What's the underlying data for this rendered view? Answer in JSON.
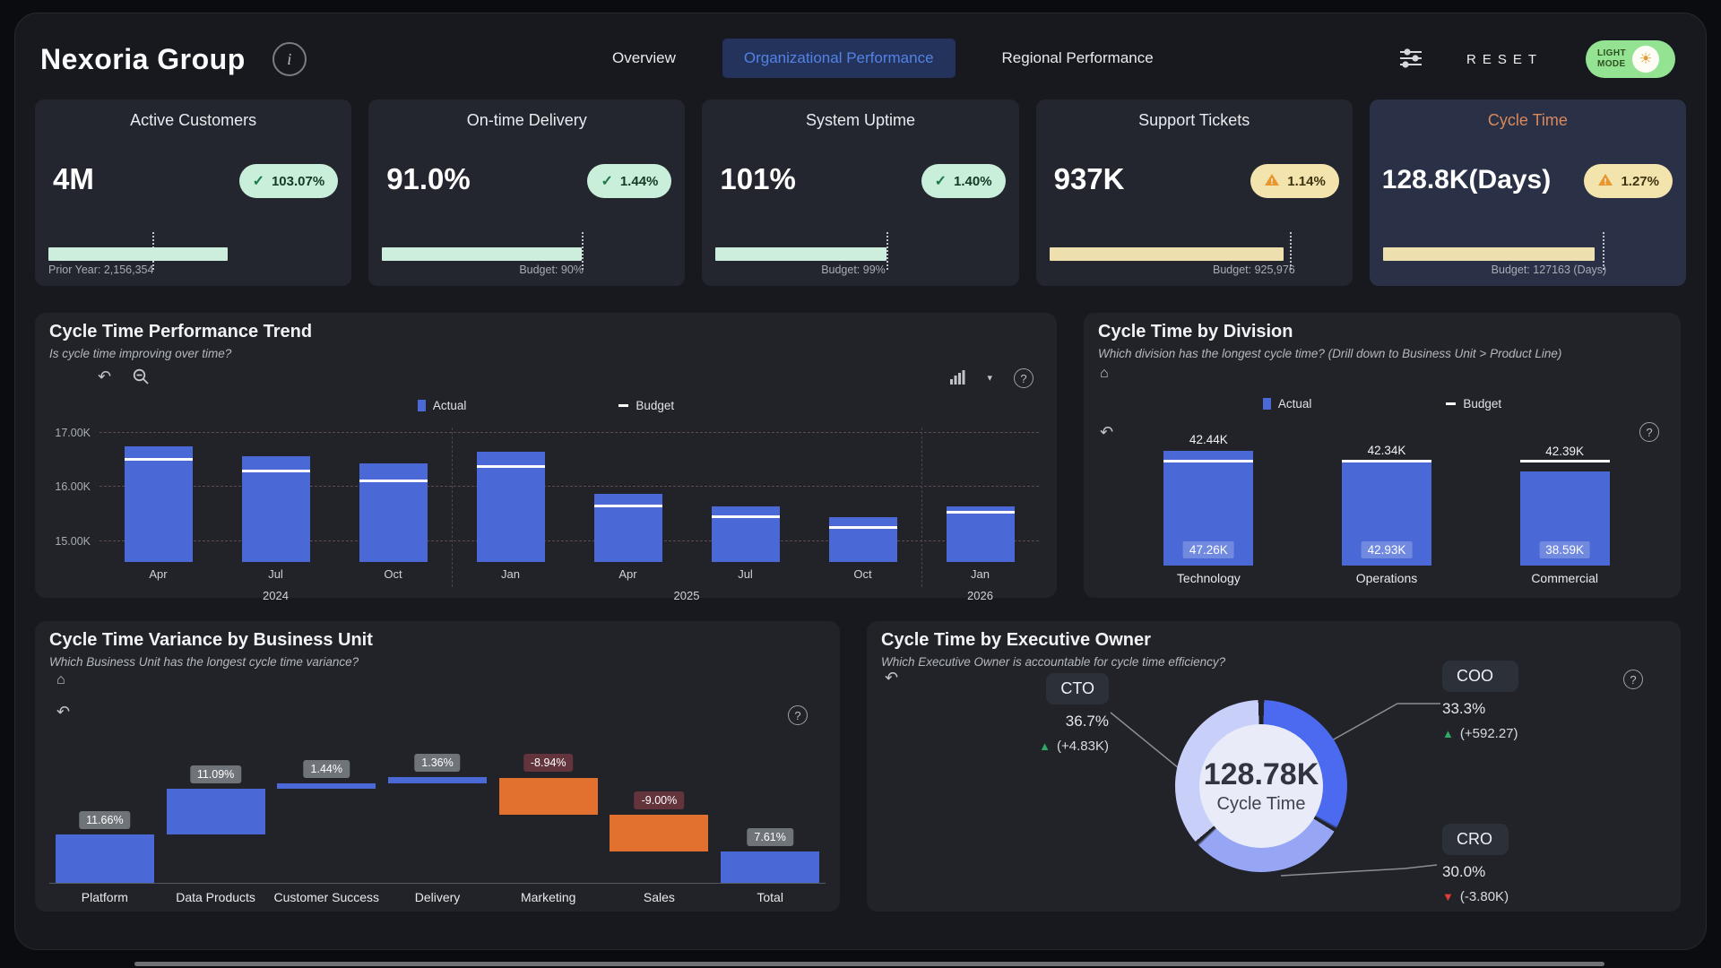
{
  "header": {
    "title": "Nexoria Group",
    "tabs": [
      {
        "label": "Overview",
        "active": false
      },
      {
        "label": "Organizational Performance",
        "active": true
      },
      {
        "label": "Regional Performance",
        "active": false
      }
    ],
    "reset_label": "RESET",
    "light_mode": {
      "line1": "LIGHT",
      "line2": "MODE"
    },
    "icons": [
      "info-icon",
      "filter-sliders-icon",
      "sun-icon"
    ]
  },
  "colors": {
    "accent_blue": "#4a69d6",
    "waterfall_decrease_orange": "#e2702e",
    "kpi_good_green": "#c9eed9",
    "kpi_warn_yellow": "#f3e4ad",
    "mint_bar": "#cdeedd",
    "gold_bar": "#eee0ae",
    "selected_card_bg": "#2a3147",
    "selected_card_title": "#d9885c",
    "selected_tab_bg": "#24335c",
    "selected_tab_text": "#5382e6",
    "light_mode_green": "#93e393"
  },
  "kpi_cards": [
    {
      "title": "Active Customers",
      "value": "4M",
      "badge": {
        "style": "green",
        "icon": "check-icon",
        "text": "103.07%"
      },
      "footer": "Prior Year: 2,156,354",
      "footer_side": "left",
      "palette": "mint",
      "fill_pct": 62,
      "target_pct": 36,
      "selected": false
    },
    {
      "title": "On-time Delivery",
      "value": "91.0%",
      "badge": {
        "style": "green",
        "icon": "check-icon",
        "text": "1.44%"
      },
      "footer": "Budget: 90%",
      "footer_side": "target",
      "palette": "mint",
      "fill_pct": 69,
      "target_pct": 69,
      "selected": false
    },
    {
      "title": "System Uptime",
      "value": "101%",
      "badge": {
        "style": "green",
        "icon": "check-icon",
        "text": "1.40%"
      },
      "footer": "Budget: 99%",
      "footer_side": "target",
      "palette": "mint",
      "fill_pct": 59,
      "target_pct": 59,
      "selected": false
    },
    {
      "title": "Support Tickets",
      "value": "937K",
      "badge": {
        "style": "yellow",
        "icon": "warning-icon",
        "text": "1.14%"
      },
      "footer": "Budget: 925,976",
      "footer_side": "target",
      "palette": "gold",
      "fill_pct": 81,
      "target_pct": 83,
      "selected": false
    },
    {
      "title": "Cycle Time",
      "value": "128.8K(Days)",
      "badge": {
        "style": "yellow",
        "icon": "warning-icon",
        "text": "1.27%"
      },
      "footer": "Budget: 127163 (Days)",
      "footer_side": "target",
      "palette": "gold",
      "fill_pct": 73,
      "target_pct": 76,
      "selected": true
    }
  ],
  "panels": {
    "trend": {
      "title": "Cycle Time Performance Trend",
      "subtitle": "Is cycle time improving over time?",
      "toolbar_icons": [
        "undo-icon",
        "zoom-out-icon",
        "bar-chart-icon",
        "dropdown-caret-icon",
        "help-icon"
      ]
    },
    "division": {
      "title": "Cycle Time by Division",
      "subtitle": "Which division has the longest cycle time? (Drill down to Business Unit > Product Line)",
      "toolbar_icons": [
        "home-icon",
        "undo-icon",
        "help-icon"
      ]
    },
    "variance": {
      "title": "Cycle Time Variance by Business Unit",
      "subtitle": "Which Business Unit has the longest cycle time variance?",
      "toolbar_icons": [
        "home-icon",
        "undo-icon",
        "help-icon"
      ]
    },
    "owner": {
      "title": "Cycle Time by Executive Owner",
      "subtitle": "Which Executive Owner is accountable for cycle time efficiency?",
      "toolbar_icons": [
        "undo-icon",
        "help-icon"
      ]
    }
  },
  "chart_data": [
    {
      "type": "bar",
      "title": "Cycle Time Performance Trend",
      "x": [
        "Apr",
        "Jul",
        "Oct",
        "Jan",
        "Apr",
        "Jul",
        "Oct",
        "Jan"
      ],
      "year_groups": [
        {
          "label": "2024",
          "span": [
            0,
            2
          ]
        },
        {
          "label": "2025",
          "span": [
            3,
            6
          ]
        },
        {
          "label": "2026",
          "span": [
            7,
            7
          ]
        }
      ],
      "separators_after_slot": [
        3,
        7
      ],
      "series": [
        {
          "name": "Actual",
          "values": [
            16740,
            16550,
            16420,
            16630,
            15860,
            15620,
            15430,
            15620
          ],
          "color": "#4a69d6"
        },
        {
          "name": "Budget",
          "values": [
            16520,
            16300,
            16120,
            16380,
            15650,
            15460,
            15260,
            15550
          ],
          "color": "#ffffff"
        }
      ],
      "ylim": [
        14600,
        17080
      ],
      "yticks": [
        {
          "v": 17000,
          "label": "17.00K"
        },
        {
          "v": 16000,
          "label": "16.00K"
        },
        {
          "v": 15000,
          "label": "15.00K"
        }
      ],
      "legend_position": "top-center",
      "grid": true
    },
    {
      "type": "bar",
      "title": "Cycle Time by Division",
      "categories": [
        "Technology",
        "Operations",
        "Commercial"
      ],
      "series": [
        {
          "name": "Actual",
          "values": [
            47260,
            42930,
            38590
          ],
          "labels": [
            "47.26K",
            "42.93K",
            "38.59K"
          ],
          "color": "#4a69d6"
        },
        {
          "name": "Budget",
          "values": [
            42440,
            42340,
            42390
          ],
          "labels": [
            "42.44K",
            "42.34K",
            "42.39K"
          ],
          "color": "#ffffff"
        }
      ],
      "legend_position": "top-center",
      "grid": false
    },
    {
      "type": "bar",
      "subtype": "waterfall",
      "title": "Cycle Time Variance by Business Unit",
      "categories": [
        "Platform",
        "Data Products",
        "Customer Success",
        "Delivery",
        "Marketing",
        "Sales",
        "Total"
      ],
      "values": [
        11.66,
        11.09,
        1.44,
        1.36,
        -8.94,
        -9.0,
        7.61
      ],
      "labels": [
        "11.66%",
        "11.09%",
        "1.44%",
        "1.36%",
        "-8.94%",
        "-9.00%",
        "7.61%"
      ],
      "kinds": [
        "increase",
        "increase",
        "increase",
        "increase",
        "decrease",
        "decrease",
        "total"
      ],
      "increase_color": "#4a69d6",
      "decrease_color": "#e2702e",
      "total_color": "#4a69d6"
    },
    {
      "type": "pie",
      "title": "Cycle Time by Executive Owner",
      "center_value": "128.78K",
      "center_label": "Cycle Time",
      "slices": [
        {
          "name": "COO",
          "value": 33.3,
          "pct": "33.3%",
          "delta": "(+592.27)",
          "direction": "up",
          "color": "#4b6af0"
        },
        {
          "name": "CRO",
          "value": 30.0,
          "pct": "30.0%",
          "delta": "(-3.80K)",
          "direction": "down",
          "color": "#96a6f4"
        },
        {
          "name": "CTO",
          "value": 36.7,
          "pct": "36.7%",
          "delta": "(+4.83K)",
          "direction": "up",
          "color": "#c8d0f9"
        }
      ]
    }
  ]
}
